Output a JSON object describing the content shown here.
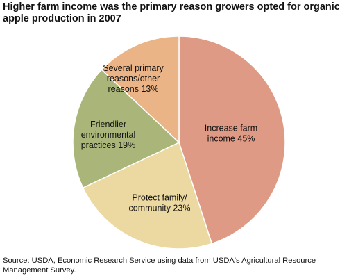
{
  "chart_data": {
    "type": "pie",
    "title": "Higher farm income was the primary reason growers opted for organic apple production in 2007",
    "slices": [
      {
        "label_lines": [
          "Increase farm",
          "income 45%"
        ],
        "value": 45,
        "color": "#df9a85"
      },
      {
        "label_lines": [
          "Protect family/",
          "community 23%"
        ],
        "value": 23,
        "color": "#ebd9a1"
      },
      {
        "label_lines": [
          "Friendlier",
          "environmental",
          "practices 19%"
        ],
        "value": 19,
        "color": "#aab679"
      },
      {
        "label_lines": [
          "Several primary",
          "reasons/other",
          "reasons 13%"
        ],
        "value": 13,
        "color": "#ebb486"
      }
    ],
    "source": "Source:  USDA, Economic Research Service using data from USDA's Agricultural Resource Management Survey."
  }
}
